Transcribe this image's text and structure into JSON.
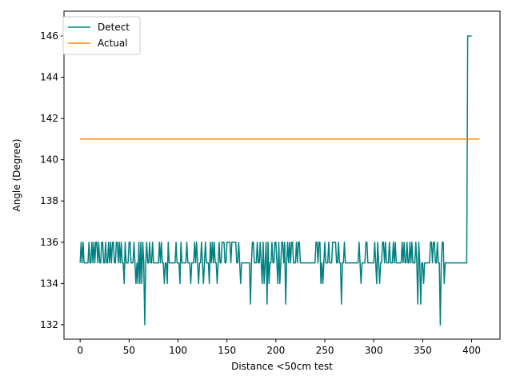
{
  "chart_data": {
    "type": "line",
    "title": "",
    "xlabel": "Distance <50cm test",
    "ylabel": "Angle (Degree)",
    "xlim": [
      -16.5,
      429
    ],
    "ylim": [
      131.3,
      147.2
    ],
    "xticks": [
      0,
      50,
      100,
      150,
      200,
      250,
      300,
      350,
      400
    ],
    "yticks": [
      132,
      134,
      136,
      138,
      140,
      142,
      144,
      146
    ],
    "grid": false,
    "legend_position": "top-left",
    "series": [
      {
        "name": "Detect",
        "color": "#008080",
        "x_start": 0,
        "x_step": 1,
        "values": [
          135,
          136,
          135,
          136,
          135,
          135,
          135,
          135,
          135,
          136,
          135,
          135,
          136,
          135,
          136,
          135,
          136,
          136,
          135,
          136,
          135,
          135,
          136,
          136,
          135,
          135,
          136,
          135,
          135,
          136,
          135,
          136,
          135,
          136,
          136,
          135,
          135,
          136,
          136,
          135,
          136,
          135,
          136,
          135,
          135,
          134,
          136,
          135,
          135,
          135,
          136,
          136,
          135,
          135,
          135,
          136,
          135,
          134,
          135,
          134,
          136,
          134,
          136,
          134,
          136,
          135,
          132,
          135,
          136,
          135,
          135,
          136,
          135,
          135,
          136,
          135,
          135,
          135,
          135,
          135,
          135,
          136,
          135,
          136,
          135,
          135,
          134,
          135,
          135,
          134,
          136,
          135,
          135,
          135,
          135,
          135,
          135,
          135,
          136,
          135,
          135,
          135,
          134,
          136,
          135,
          135,
          135,
          135,
          135,
          136,
          135,
          135,
          135,
          134,
          135,
          135,
          135,
          136,
          135,
          136,
          135,
          134,
          135,
          135,
          136,
          135,
          134,
          135,
          136,
          135,
          135,
          135,
          134,
          136,
          135,
          136,
          135,
          136,
          135,
          135,
          134,
          135,
          136,
          135,
          135,
          136,
          136,
          136,
          135,
          135,
          136,
          136,
          136,
          136,
          135,
          136,
          136,
          136,
          136,
          136,
          135,
          135,
          136,
          135,
          134,
          135,
          135,
          135,
          135,
          135,
          135,
          135,
          135,
          135,
          133,
          135,
          136,
          136,
          135,
          135,
          135,
          136,
          135,
          135,
          136,
          135,
          134,
          136,
          134,
          135,
          136,
          133,
          136,
          134,
          135,
          135,
          136,
          135,
          135,
          136,
          136,
          135,
          134,
          136,
          134,
          135,
          136,
          136,
          135,
          136,
          133,
          135,
          136,
          135,
          136,
          135,
          136,
          136,
          135,
          135,
          135,
          136,
          135,
          136,
          136,
          135,
          135,
          135,
          135,
          135,
          135,
          135,
          135,
          135,
          135,
          135,
          135,
          135,
          135,
          135,
          135,
          136,
          136,
          135,
          136,
          136,
          134,
          135,
          134,
          135,
          136,
          135,
          135,
          135,
          136,
          135,
          135,
          135,
          136,
          136,
          136,
          136,
          135,
          135,
          136,
          135,
          135,
          133,
          135,
          135,
          136,
          135,
          135,
          135,
          135,
          135,
          135,
          135,
          135,
          135,
          135,
          135,
          135,
          135,
          135,
          136,
          135,
          134,
          135,
          135,
          135,
          135,
          136,
          136,
          135,
          135,
          135,
          135,
          135,
          135,
          135,
          136,
          135,
          134,
          136,
          135,
          134,
          135,
          135,
          136,
          136,
          135,
          136,
          135,
          135,
          135,
          136,
          135,
          135,
          135,
          136,
          135,
          136,
          135,
          135,
          135,
          135,
          135,
          135,
          136,
          135,
          136,
          135,
          135,
          136,
          135,
          135,
          136,
          135,
          136,
          135,
          135,
          135,
          136,
          135,
          133,
          136,
          135,
          133,
          135,
          135,
          134,
          135,
          135,
          135,
          135,
          135,
          135,
          136,
          136,
          135,
          136,
          136,
          135,
          135,
          136,
          135,
          135,
          132,
          135,
          136,
          136,
          134,
          135,
          135,
          135,
          135,
          135,
          135,
          135,
          135,
          135,
          135,
          135,
          135,
          135,
          135,
          135,
          135,
          135,
          135,
          135,
          135,
          135,
          135,
          135,
          146,
          146,
          146,
          146,
          146
        ]
      },
      {
        "name": "Actual",
        "color": "#ff8c00",
        "x": [
          0,
          408
        ],
        "values": [
          141,
          141
        ]
      }
    ]
  }
}
